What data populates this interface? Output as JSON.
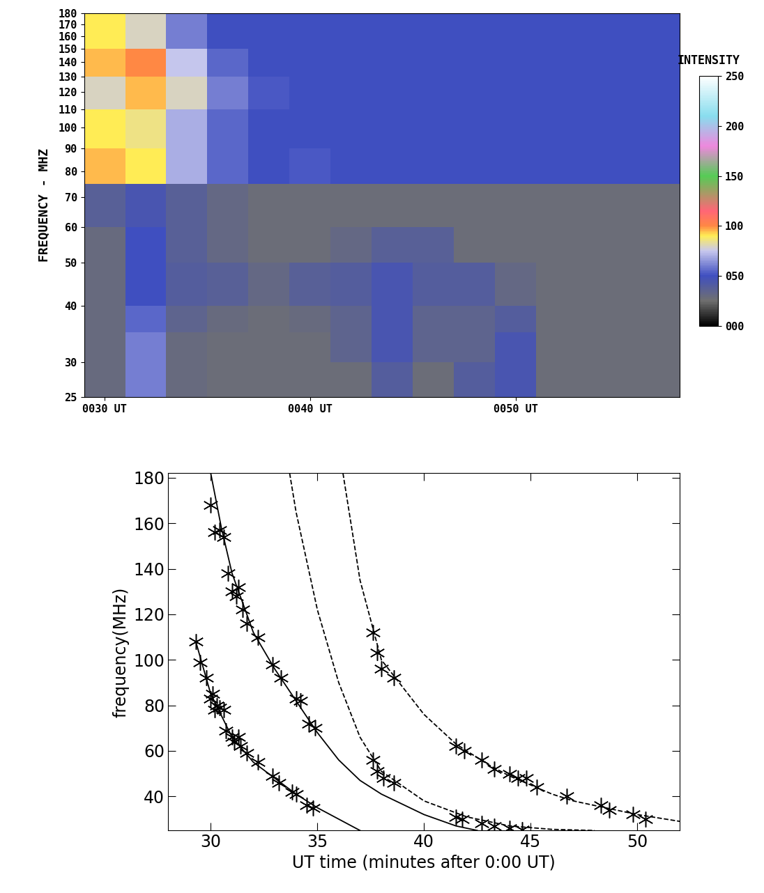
{
  "chart_data": [
    {
      "type": "heatmap",
      "ylabel": "FREQUENCY - MHZ",
      "log": "y",
      "x_edges": [
        29,
        31,
        33,
        35,
        37,
        39,
        41,
        43,
        45,
        47,
        49,
        51,
        53,
        55,
        57,
        59
      ],
      "y_edges": [
        25,
        30,
        35,
        40,
        50,
        60,
        75,
        90,
        110,
        130,
        150,
        180
      ],
      "cells": [
        [
          30,
          60,
          30,
          28,
          28,
          28,
          28,
          40,
          28,
          40,
          45,
          28,
          28,
          28,
          28
        ],
        [
          30,
          60,
          30,
          28,
          28,
          28,
          35,
          45,
          35,
          35,
          45,
          28,
          28,
          28,
          28
        ],
        [
          30,
          55,
          35,
          30,
          28,
          30,
          35,
          45,
          35,
          35,
          40,
          28,
          28,
          28,
          28
        ],
        [
          30,
          50,
          40,
          38,
          32,
          38,
          40,
          45,
          40,
          40,
          32,
          28,
          28,
          28,
          28
        ],
        [
          30,
          50,
          38,
          32,
          28,
          28,
          32,
          38,
          38,
          28,
          28,
          28,
          28,
          28,
          28
        ],
        [
          38,
          45,
          38,
          32,
          28,
          28,
          28,
          28,
          28,
          28,
          28,
          28,
          28,
          28,
          28
        ],
        [
          95,
          90,
          70,
          55,
          50,
          52,
          50,
          50,
          50,
          50,
          50,
          50,
          50,
          50,
          50
        ],
        [
          90,
          85,
          70,
          55,
          50,
          50,
          50,
          50,
          50,
          50,
          50,
          50,
          50,
          50,
          50
        ],
        [
          80,
          95,
          80,
          60,
          52,
          50,
          50,
          50,
          50,
          50,
          50,
          50,
          50,
          50,
          50
        ],
        [
          95,
          100,
          75,
          55,
          50,
          50,
          50,
          50,
          50,
          50,
          50,
          50,
          50,
          50,
          50
        ],
        [
          90,
          80,
          60,
          50,
          50,
          50,
          50,
          50,
          50,
          50,
          50,
          50,
          50,
          50,
          50
        ]
      ],
      "xlim": [
        29,
        58
      ],
      "xticks": [
        {
          "value": 30,
          "label": "0030 UT"
        },
        {
          "value": 40,
          "label": "0040 UT"
        },
        {
          "value": 50,
          "label": "0050 UT"
        }
      ],
      "ylim": [
        25,
        180
      ],
      "yticks": [
        25,
        30,
        40,
        50,
        60,
        70,
        80,
        90,
        100,
        110,
        120,
        130,
        140,
        150,
        160,
        170,
        180
      ],
      "colorbar": {
        "label": "INTENSITY",
        "range": [
          0,
          250
        ],
        "ticks": [
          {
            "value": 0,
            "label": "000"
          },
          {
            "value": 50,
            "label": "050"
          },
          {
            "value": 100,
            "label": "100"
          },
          {
            "value": 150,
            "label": "150"
          },
          {
            "value": 200,
            "label": "200"
          },
          {
            "value": 250,
            "label": "250"
          }
        ]
      }
    },
    {
      "type": "scatter",
      "xlabel": "UT time (minutes after 0:00 UT)",
      "ylabel": "frequency(MHz)",
      "xlim": [
        28,
        52
      ],
      "xticks": [
        30,
        35,
        40,
        45,
        50
      ],
      "ylim": [
        25,
        182
      ],
      "yticks": [
        40,
        60,
        80,
        100,
        120,
        140,
        160,
        180
      ],
      "series": [
        {
          "type": "line",
          "color": "#000000",
          "line_style": "solid",
          "x": [
            29.3,
            30,
            31,
            32,
            33,
            34,
            35,
            36,
            37
          ],
          "values": [
            108,
            85,
            66,
            55,
            48,
            41,
            35,
            30,
            25
          ]
        },
        {
          "type": "line",
          "color": "#000000",
          "line_style": "solid",
          "x": [
            30.0,
            30.5,
            31,
            32,
            33,
            34,
            35,
            36,
            37,
            38,
            40,
            41.5,
            42.5
          ],
          "values": [
            182,
            158,
            138,
            112,
            96,
            82,
            68,
            56,
            47,
            41,
            32,
            27,
            25
          ]
        },
        {
          "type": "line",
          "color": "#000000",
          "line_style": "dashed",
          "x": [
            33.7,
            34,
            35,
            36,
            37,
            38,
            40,
            42,
            44,
            46,
            48
          ],
          "values": [
            182,
            165,
            122,
            90,
            66,
            51,
            38,
            31,
            27,
            25.5,
            25
          ]
        },
        {
          "type": "line",
          "color": "#000000",
          "line_style": "dashed",
          "x": [
            36.2,
            37,
            38,
            40,
            41.5,
            43,
            44,
            45,
            46,
            47,
            48,
            49,
            50,
            52
          ],
          "values": [
            182,
            135,
            100,
            76,
            63,
            54,
            49,
            45,
            41,
            38,
            36,
            34,
            32,
            29
          ]
        },
        {
          "type": "scatter",
          "color": "#000000",
          "marker": "asterisk",
          "x": [
            29.3,
            29.5,
            29.8,
            30.0,
            30.1,
            30.2,
            30.3,
            30.4,
            30.6,
            30.7,
            31.0,
            31.1,
            31.3,
            31.4,
            31.7,
            32.2,
            32.9,
            33.2,
            33.8,
            34.0,
            34.5,
            34.8
          ],
          "values": [
            108,
            99,
            92,
            83,
            85,
            78,
            80,
            79,
            78,
            69,
            66,
            64,
            66,
            62,
            59,
            55,
            49,
            46,
            42,
            41,
            36,
            35
          ]
        },
        {
          "type": "scatter",
          "color": "#000000",
          "marker": "asterisk",
          "x": [
            30.0,
            30.2,
            30.4,
            30.6,
            30.8,
            31.0,
            31.2,
            31.3,
            31.5,
            31.7,
            32.2,
            32.9,
            33.3,
            34.0,
            34.2,
            34.6,
            34.9
          ],
          "values": [
            168,
            156,
            157,
            154,
            138,
            130,
            128,
            132,
            122,
            116,
            110,
            98,
            92,
            83,
            82,
            72,
            70
          ]
        },
        {
          "type": "scatter",
          "color": "#000000",
          "marker": "asterisk",
          "x": [
            37.6,
            37.8,
            38.1,
            38.6,
            41.5,
            41.8,
            42.7,
            43.3,
            44.0,
            44.6
          ],
          "values": [
            56,
            51,
            48,
            46,
            31,
            30,
            28,
            27,
            26,
            25.5
          ]
        },
        {
          "type": "scatter",
          "color": "#000000",
          "marker": "asterisk",
          "x": [
            37.6,
            37.8,
            38.0,
            38.6,
            41.5,
            41.9,
            42.7,
            43.3,
            44.0,
            44.4,
            44.8,
            45.3,
            46.7,
            48.3,
            48.7,
            49.8,
            50.4
          ],
          "values": [
            112,
            103,
            96,
            92,
            62,
            60,
            56,
            52,
            50,
            48,
            48,
            44,
            40,
            36,
            34,
            32,
            30
          ]
        }
      ]
    }
  ]
}
